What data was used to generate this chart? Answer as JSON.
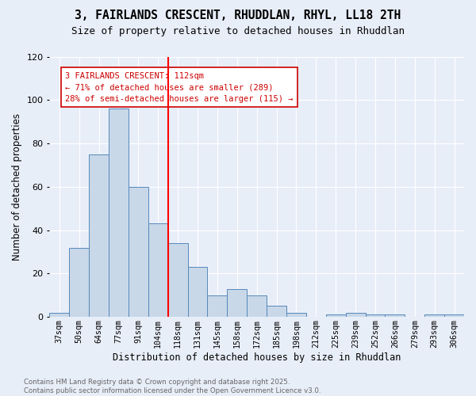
{
  "title": "3, FAIRLANDS CRESCENT, RHUDDLAN, RHYL, LL18 2TH",
  "subtitle": "Size of property relative to detached houses in Rhuddlan",
  "xlabel": "Distribution of detached houses by size in Rhuddlan",
  "ylabel": "Number of detached properties",
  "bar_color": "#c8d8e8",
  "bar_edge_color": "#5588bb",
  "background_color": "#e8eef8",
  "grid_color": "#ffffff",
  "categories": [
    "37sqm",
    "50sqm",
    "64sqm",
    "77sqm",
    "91sqm",
    "104sqm",
    "118sqm",
    "131sqm",
    "145sqm",
    "158sqm",
    "172sqm",
    "185sqm",
    "198sqm",
    "212sqm",
    "225sqm",
    "239sqm",
    "252sqm",
    "266sqm",
    "279sqm",
    "293sqm",
    "306sqm"
  ],
  "values": [
    2,
    32,
    75,
    96,
    60,
    43,
    34,
    23,
    10,
    13,
    10,
    5,
    2,
    0,
    1,
    2,
    1,
    1,
    0,
    1,
    1
  ],
  "red_line_x": 5.5,
  "annotation_text": "3 FAIRLANDS CRESCENT: 112sqm\n← 71% of detached houses are smaller (289)\n28% of semi-detached houses are larger (115) →",
  "annotation_box_color": "#ffffff",
  "annotation_text_color": "#cc0000",
  "ylim": [
    0,
    120
  ],
  "yticks": [
    0,
    20,
    40,
    60,
    80,
    100,
    120
  ],
  "footer_line1": "Contains HM Land Registry data © Crown copyright and database right 2025.",
  "footer_line2": "Contains public sector information licensed under the Open Government Licence v3.0."
}
